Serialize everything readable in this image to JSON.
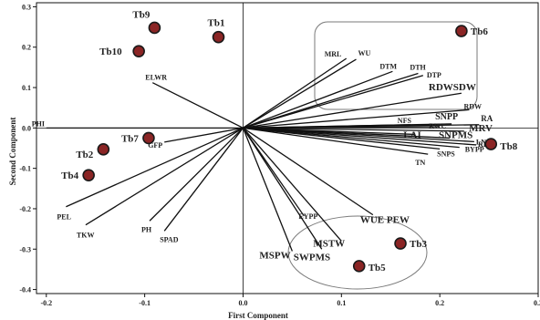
{
  "chart_data": {
    "type": "scatter",
    "subtype": "biplot",
    "xlabel": "First Component",
    "ylabel": "Second Component",
    "xlim": [
      -0.21,
      0.3
    ],
    "ylim": [
      -0.41,
      0.31
    ],
    "x_ticks": [
      -0.2,
      -0.1,
      0.0,
      0.1,
      0.2,
      0.3
    ],
    "x_tick_labels": [
      "-0.2",
      "-0.1",
      "0.0",
      "0.1",
      "0.2",
      "0.3"
    ],
    "y_ticks": [
      0.3,
      0.2,
      0.1,
      0.0,
      -0.1,
      -0.2,
      -0.3,
      -0.4
    ],
    "y_tick_labels": [
      "0.3",
      "0.2",
      "0.1",
      "0.0",
      "-0.1",
      "-0.2",
      "-0.3",
      "-0.4"
    ],
    "grid": false,
    "legend": "none",
    "colors": {
      "point_fill": "#8b2525",
      "point_outline": "#1a1a1a",
      "vector": "#111111",
      "group_outline": "#7a7a7a"
    },
    "points": [
      {
        "label": "Tb1",
        "x": -0.025,
        "y": 0.225
      },
      {
        "label": "Tb9",
        "x": -0.09,
        "y": 0.248
      },
      {
        "label": "Tb10",
        "x": -0.106,
        "y": 0.19
      },
      {
        "label": "Tb6",
        "x": 0.222,
        "y": 0.24
      },
      {
        "label": "Tb7",
        "x": -0.096,
        "y": -0.025
      },
      {
        "label": "Tb2",
        "x": -0.142,
        "y": -0.053
      },
      {
        "label": "Tb4",
        "x": -0.157,
        "y": -0.117
      },
      {
        "label": "Tb8",
        "x": 0.252,
        "y": -0.04
      },
      {
        "label": "Tb3",
        "x": 0.16,
        "y": -0.286
      },
      {
        "label": "Tb5",
        "x": 0.118,
        "y": -0.342
      }
    ],
    "vectors": [
      {
        "label": "MRL",
        "x": 0.105,
        "y": 0.172
      },
      {
        "label": "WU",
        "x": 0.115,
        "y": 0.17
      },
      {
        "label": "DTM",
        "x": 0.152,
        "y": 0.14
      },
      {
        "label": "DTH",
        "x": 0.178,
        "y": 0.135
      },
      {
        "label": "DTP",
        "x": 0.183,
        "y": 0.13
      },
      {
        "label": "RDWSDW",
        "x": 0.222,
        "y": 0.086
      },
      {
        "label": "RDW",
        "x": 0.23,
        "y": 0.045
      },
      {
        "label": "NFS",
        "x": 0.17,
        "y": 0.008
      },
      {
        "label": "SNPP",
        "x": 0.212,
        "y": 0.01
      },
      {
        "label": "RA",
        "x": 0.24,
        "y": 0.008
      },
      {
        "label": "RWC",
        "x": 0.2,
        "y": 0.003
      },
      {
        "label": "MRV",
        "x": 0.225,
        "y": -0.008
      },
      {
        "label": "LAI",
        "x": 0.175,
        "y": -0.016
      },
      {
        "label": "SNPMS",
        "x": 0.21,
        "y": -0.025
      },
      {
        "label": "LN",
        "x": 0.235,
        "y": -0.034
      },
      {
        "label": "RD",
        "x": 0.237,
        "y": -0.042
      },
      {
        "label": "BYPP",
        "x": 0.22,
        "y": -0.048
      },
      {
        "label": "SNPS",
        "x": 0.2,
        "y": -0.052
      },
      {
        "label": "TN",
        "x": 0.188,
        "y": -0.065
      },
      {
        "label": "EYPP",
        "x": 0.062,
        "y": -0.218
      },
      {
        "label": "WUE PEW",
        "x": 0.132,
        "y": -0.215
      },
      {
        "label": "MSTW",
        "x": 0.1,
        "y": -0.28
      },
      {
        "label": "SWPMS",
        "x": 0.08,
        "y": -0.3
      },
      {
        "label": "MSPW",
        "x": 0.05,
        "y": -0.305
      },
      {
        "label": "ELWR",
        "x": -0.092,
        "y": 0.112
      },
      {
        "label": "GFP",
        "x": -0.08,
        "y": -0.035
      },
      {
        "label": "PHI",
        "x": -0.2,
        "y": 0.0
      },
      {
        "label": "PEL",
        "x": -0.18,
        "y": -0.195
      },
      {
        "label": "TKW",
        "x": -0.16,
        "y": -0.24
      },
      {
        "label": "PH",
        "x": -0.095,
        "y": -0.23
      },
      {
        "label": "SPAD",
        "x": -0.08,
        "y": -0.255
      }
    ]
  }
}
